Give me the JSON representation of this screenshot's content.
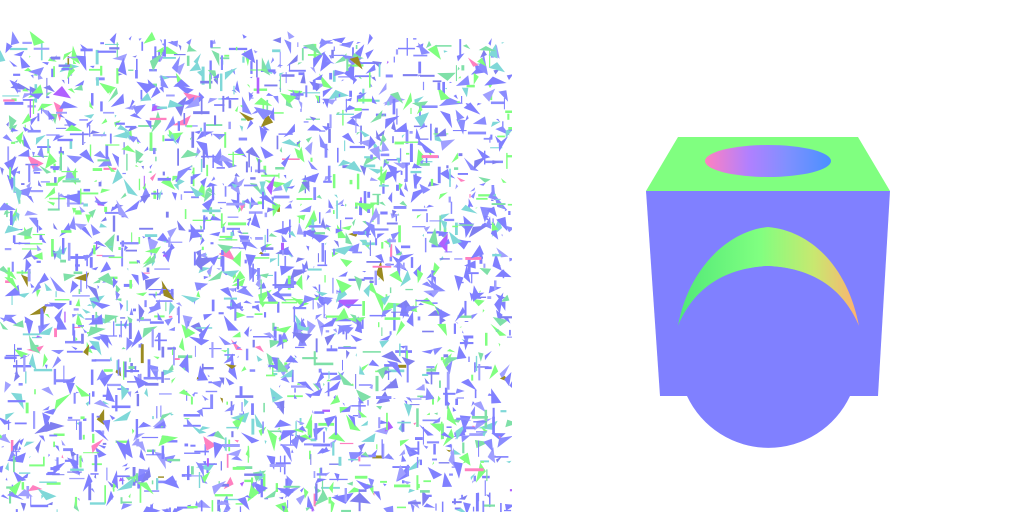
{
  "colors": {
    "background": "#ffffff",
    "normal_blue": "#8080ff",
    "normal_green": "#80ff80",
    "normal_cyan": "#7fd8d8",
    "normal_pink": "#ff80c0",
    "normal_olive": "#9a8a20",
    "normal_orange": "#ffc060",
    "normal_purple": "#b060ff"
  },
  "scatter_fragments": {
    "seed": 7,
    "palette": [
      "#8080ff",
      "#8a8cff",
      "#7f7ff0",
      "#80ff80",
      "#7fe0a8",
      "#7fd8d8",
      "#a0a0ff",
      "#ff80c0",
      "#9a8a20",
      "#b060ff"
    ],
    "weights": [
      30,
      14,
      10,
      16,
      8,
      10,
      8,
      2,
      1,
      1
    ]
  },
  "objects": [
    {
      "id": "fragmented-cube",
      "description_visible": false
    },
    {
      "id": "cube-with-cylindrical-holes",
      "description_visible": false
    }
  ]
}
